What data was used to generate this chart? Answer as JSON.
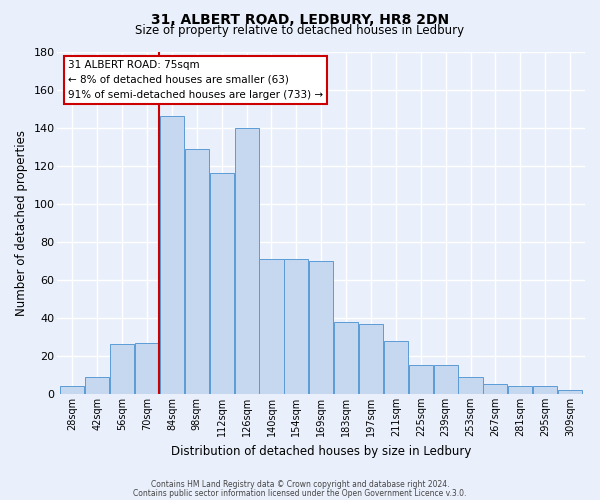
{
  "title": "31, ALBERT ROAD, LEDBURY, HR8 2DN",
  "subtitle": "Size of property relative to detached houses in Ledbury",
  "xlabel": "Distribution of detached houses by size in Ledbury",
  "ylabel": "Number of detached properties",
  "bar_labels": [
    "28sqm",
    "42sqm",
    "56sqm",
    "70sqm",
    "84sqm",
    "98sqm",
    "112sqm",
    "126sqm",
    "140sqm",
    "154sqm",
    "169sqm",
    "183sqm",
    "197sqm",
    "211sqm",
    "225sqm",
    "239sqm",
    "253sqm",
    "267sqm",
    "281sqm",
    "295sqm",
    "309sqm"
  ],
  "bar_values": [
    4,
    9,
    26,
    27,
    146,
    129,
    116,
    140,
    71,
    71,
    70,
    38,
    37,
    28,
    15,
    15,
    9,
    5,
    4,
    4,
    2
  ],
  "bar_color": "#c5d8f0",
  "bar_edge_color": "#5b9bd5",
  "bg_color": "#eaf0fb",
  "grid_color": "#ffffff",
  "annotation_title": "31 ALBERT ROAD: 75sqm",
  "annotation_line1": "← 8% of detached houses are smaller (63)",
  "annotation_line2": "91% of semi-detached houses are larger (733) →",
  "annotation_box_color": "#ffffff",
  "annotation_border_color": "#cc0000",
  "red_line_color": "#cc0000",
  "ylim": [
    0,
    180
  ],
  "yticks": [
    0,
    20,
    40,
    60,
    80,
    100,
    120,
    140,
    160,
    180
  ],
  "footer1": "Contains HM Land Registry data © Crown copyright and database right 2024.",
  "footer2": "Contains public sector information licensed under the Open Government Licence v.3.0."
}
